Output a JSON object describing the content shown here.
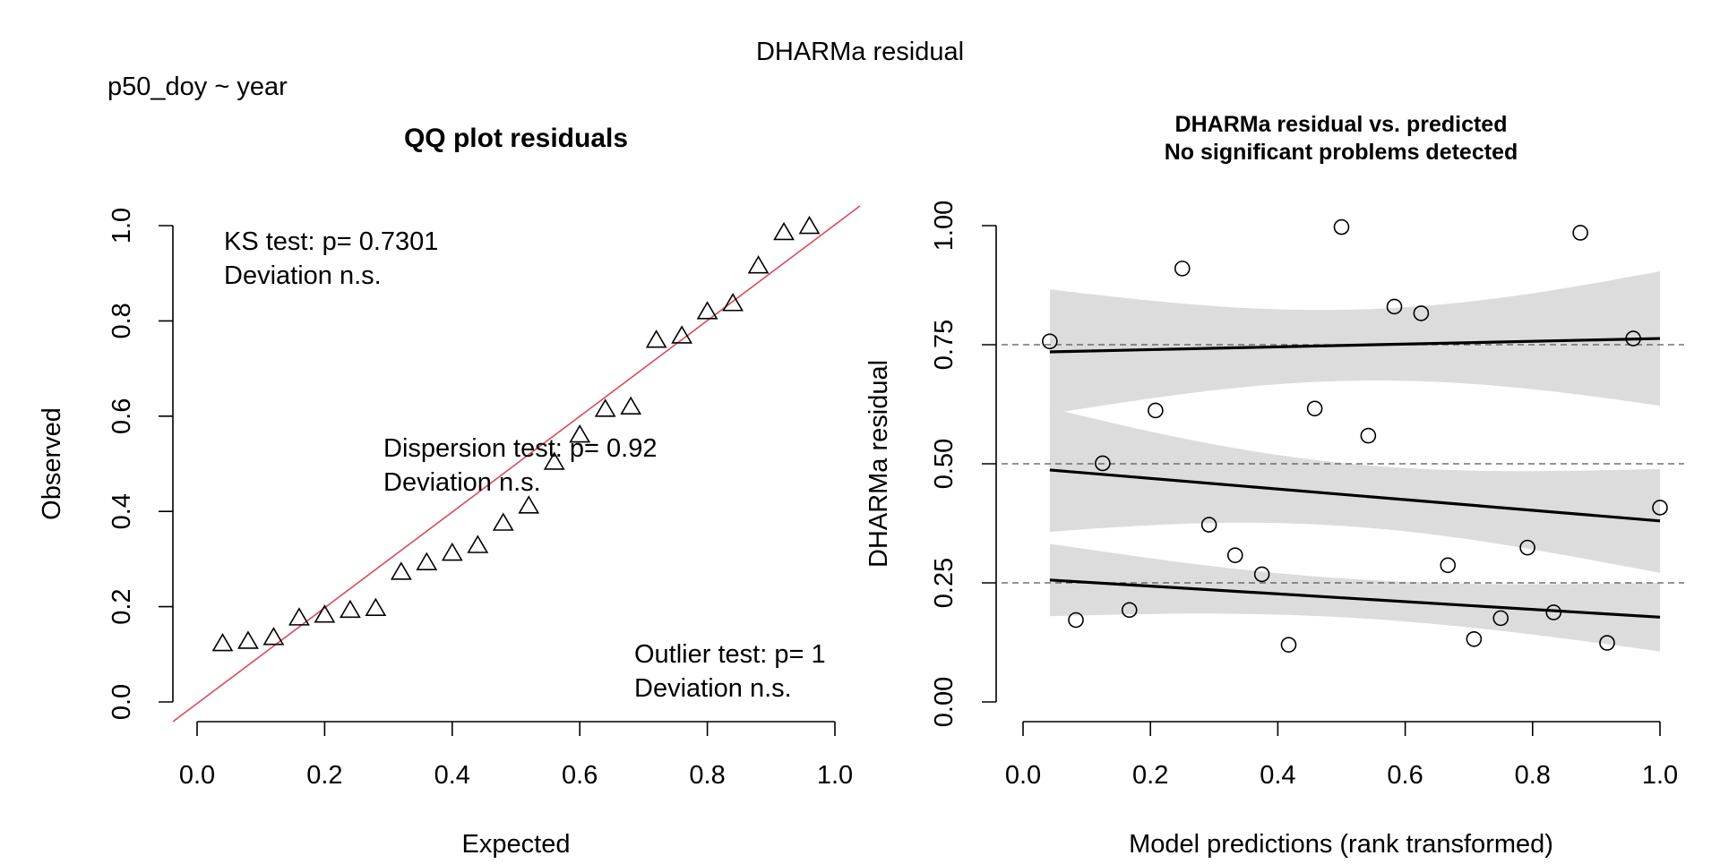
{
  "page": {
    "main_title": "DHARMa residual",
    "formula": "p50_doy ~ year"
  },
  "chart_data": [
    {
      "type": "scatter",
      "title": "QQ plot residuals",
      "xlabel": "Expected",
      "ylabel": "Observed",
      "xlim": [
        0.0,
        1.0
      ],
      "ylim": [
        0.0,
        1.0
      ],
      "xticks": [
        "0.0",
        "0.2",
        "0.4",
        "0.6",
        "0.8",
        "1.0"
      ],
      "yticks": [
        "0.0",
        "0.2",
        "0.4",
        "0.6",
        "0.8",
        "1.0"
      ],
      "grid": false,
      "marker": "triangle",
      "reference_line_color": "#d94a5c",
      "x": [
        0.04,
        0.08,
        0.12,
        0.16,
        0.2,
        0.24,
        0.28,
        0.32,
        0.36,
        0.4,
        0.44,
        0.48,
        0.52,
        0.56,
        0.6,
        0.64,
        0.68,
        0.72,
        0.76,
        0.8,
        0.84,
        0.88,
        0.92,
        0.96
      ],
      "y": [
        0.122,
        0.127,
        0.135,
        0.176,
        0.182,
        0.192,
        0.196,
        0.272,
        0.292,
        0.312,
        0.328,
        0.375,
        0.411,
        0.503,
        0.56,
        0.614,
        0.619,
        0.759,
        0.768,
        0.819,
        0.836,
        0.915,
        0.985,
        0.998
      ],
      "annotations": {
        "ks_line1": "KS test: p= 0.7301",
        "ks_line2": "Deviation  n.s.",
        "disp_line1": "Dispersion test: p= 0.92",
        "disp_line2": "Deviation  n.s.",
        "out_line1": "Outlier test: p= 1",
        "out_line2": "Deviation  n.s."
      }
    },
    {
      "type": "scatter",
      "title": "DHARMa residual vs. predicted",
      "subtitle": "No significant problems detected",
      "xlabel": "Model predictions (rank transformed)",
      "ylabel": "DHARMa residual",
      "xlim": [
        0.0,
        1.0
      ],
      "ylim": [
        0.0,
        1.0
      ],
      "xticks": [
        "0.0",
        "0.2",
        "0.4",
        "0.6",
        "0.8",
        "1.0"
      ],
      "yticks": [
        "0.00",
        "0.25",
        "0.50",
        "0.75",
        "1.00"
      ],
      "grid": false,
      "marker": "circle",
      "reference_lines": [
        0.25,
        0.5,
        0.75
      ],
      "x": [
        0.042,
        0.083,
        0.125,
        0.167,
        0.208,
        0.25,
        0.292,
        0.333,
        0.375,
        0.417,
        0.458,
        0.5,
        0.542,
        0.583,
        0.625,
        0.667,
        0.708,
        0.75,
        0.792,
        0.833,
        0.875,
        0.917,
        0.958,
        1.0
      ],
      "y": [
        0.757,
        0.172,
        0.501,
        0.193,
        0.612,
        0.91,
        0.372,
        0.308,
        0.268,
        0.12,
        0.616,
        0.997,
        0.559,
        0.83,
        0.816,
        0.287,
        0.132,
        0.176,
        0.324,
        0.188,
        0.985,
        0.124,
        0.763,
        0.408
      ],
      "quantile_fits": [
        {
          "quantile": 0.25,
          "x": [
            0.042,
            1.0
          ],
          "y": [
            0.256,
            0.178
          ],
          "band_low": [
            0.18,
            0.106
          ],
          "band_high": [
            0.332,
            0.25
          ]
        },
        {
          "quantile": 0.5,
          "x": [
            0.042,
            1.0
          ],
          "y": [
            0.487,
            0.38
          ],
          "band_low": [
            0.357,
            0.271
          ],
          "band_high": [
            0.617,
            0.489
          ]
        },
        {
          "quantile": 0.75,
          "x": [
            0.042,
            1.0
          ],
          "y": [
            0.735,
            0.763
          ],
          "band_low": [
            0.605,
            0.622
          ],
          "band_high": [
            0.866,
            0.904
          ]
        }
      ]
    }
  ]
}
